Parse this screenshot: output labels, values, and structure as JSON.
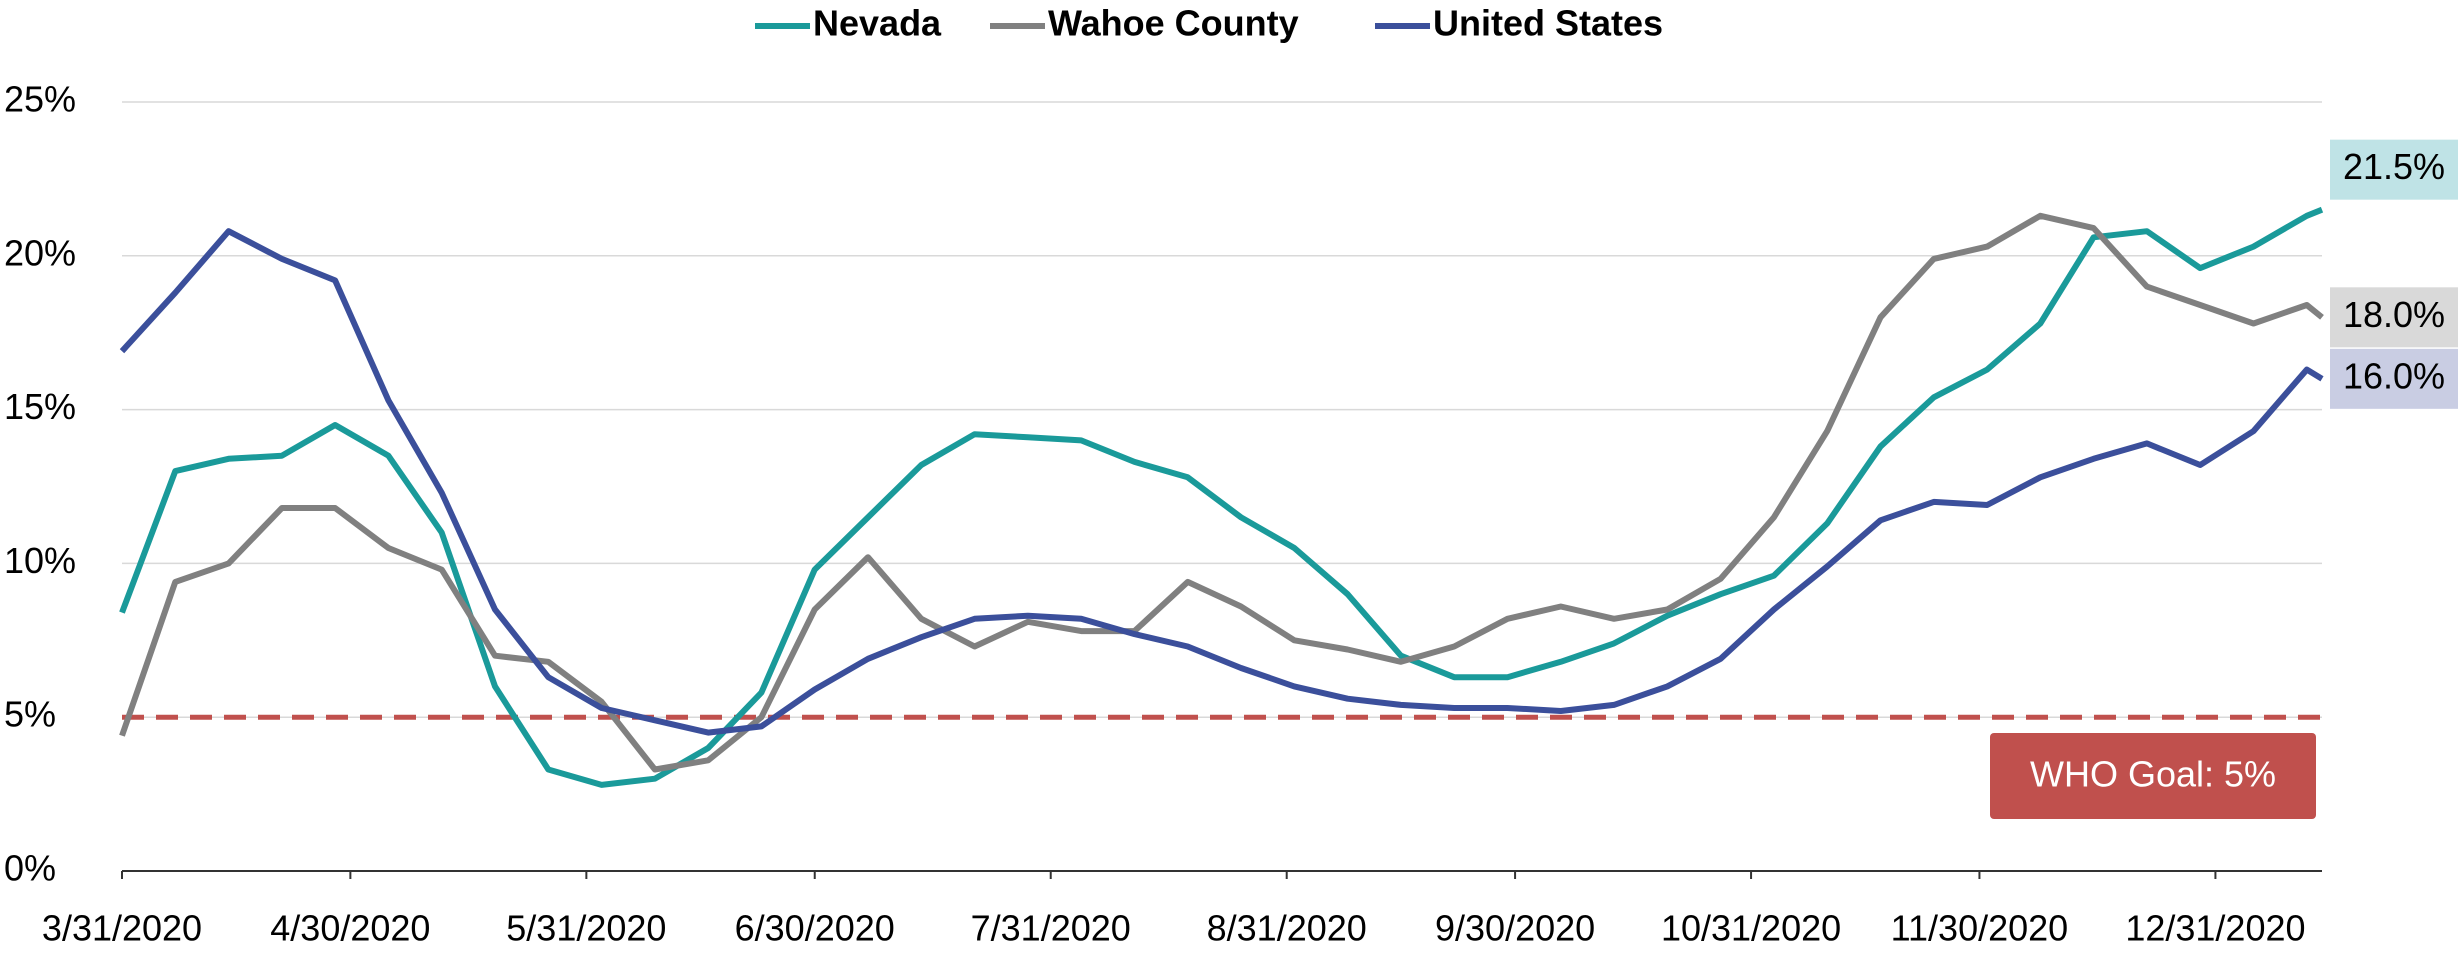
{
  "chart_data": {
    "type": "line",
    "x": [
      "3/31/2020",
      "4/7/2020",
      "4/14/2020",
      "4/21/2020",
      "4/28/2020",
      "5/5/2020",
      "5/12/2020",
      "5/19/2020",
      "5/26/2020",
      "6/2/2020",
      "6/9/2020",
      "6/16/2020",
      "6/23/2020",
      "6/30/2020",
      "7/7/2020",
      "7/14/2020",
      "7/21/2020",
      "7/28/2020",
      "8/4/2020",
      "8/11/2020",
      "8/18/2020",
      "8/25/2020",
      "9/1/2020",
      "9/8/2020",
      "9/15/2020",
      "9/22/2020",
      "9/29/2020",
      "10/6/2020",
      "10/13/2020",
      "10/20/2020",
      "10/27/2020",
      "11/3/2020",
      "11/10/2020",
      "11/17/2020",
      "11/24/2020",
      "12/1/2020",
      "12/8/2020",
      "12/15/2020",
      "12/22/2020",
      "12/29/2020",
      "1/5/2021",
      "1/12/2021",
      "1/14/2021"
    ],
    "series": [
      {
        "name": "Nevada",
        "color": "#1a9a9a",
        "label_bg": "#bfe3e6",
        "end_label": "21.5%",
        "values": [
          8.4,
          13.0,
          13.4,
          13.5,
          14.5,
          13.5,
          11.0,
          6.0,
          3.3,
          2.8,
          3.0,
          4.0,
          5.8,
          9.8,
          11.5,
          13.2,
          14.2,
          14.1,
          14.0,
          13.3,
          12.8,
          11.5,
          10.5,
          9.0,
          7.0,
          6.3,
          6.3,
          6.8,
          7.4,
          8.3,
          9.0,
          9.6,
          11.3,
          13.8,
          15.4,
          16.3,
          17.8,
          20.6,
          20.8,
          19.6,
          20.3,
          21.3,
          21.5
        ]
      },
      {
        "name": "Wahoe County",
        "color": "#808080",
        "label_bg": "#d9d9d9",
        "end_label": "18.0%",
        "values": [
          4.4,
          9.4,
          10.0,
          11.8,
          11.8,
          10.5,
          9.8,
          7.0,
          6.8,
          5.5,
          3.3,
          3.6,
          5.0,
          8.5,
          10.2,
          8.2,
          7.3,
          8.1,
          7.8,
          7.8,
          9.4,
          8.6,
          7.5,
          7.2,
          6.8,
          7.3,
          8.2,
          8.6,
          8.2,
          8.5,
          9.5,
          11.5,
          14.3,
          18.0,
          19.9,
          20.3,
          21.3,
          20.9,
          19.0,
          18.4,
          17.8,
          18.4,
          18.0
        ]
      },
      {
        "name": "United States",
        "color": "#3b4f9b",
        "label_bg": "#c9cde3",
        "end_label": "16.0%",
        "values": [
          16.9,
          18.8,
          20.8,
          19.9,
          19.2,
          15.3,
          12.3,
          8.5,
          6.3,
          5.3,
          4.9,
          4.5,
          4.7,
          5.9,
          6.9,
          7.6,
          8.2,
          8.3,
          8.2,
          7.7,
          7.3,
          6.6,
          6.0,
          5.6,
          5.4,
          5.3,
          5.3,
          5.2,
          5.4,
          6.0,
          6.9,
          8.5,
          9.9,
          11.4,
          12.0,
          11.9,
          12.8,
          13.4,
          13.9,
          13.2,
          14.3,
          16.3,
          16.0
        ]
      }
    ],
    "xlim": [
      "3/31/2020",
      "1/14/2021"
    ],
    "xticks": [
      "3/31/2020",
      "4/30/2020",
      "5/31/2020",
      "6/30/2020",
      "7/31/2020",
      "8/31/2020",
      "9/30/2020",
      "10/31/2020",
      "11/30/2020",
      "12/31/2020"
    ],
    "ylim": [
      0,
      25
    ],
    "yticks": [
      {
        "value": 0,
        "label": "0%"
      },
      {
        "value": 5,
        "label": "5%"
      },
      {
        "value": 10,
        "label": "10%"
      },
      {
        "value": 15,
        "label": "15%"
      },
      {
        "value": 20,
        "label": "20%"
      },
      {
        "value": 25,
        "label": "25%"
      }
    ],
    "grid": true,
    "legend": "top",
    "reference_line": {
      "value": 5,
      "label": "WHO Goal: 5%",
      "color": "#c0504d"
    }
  }
}
